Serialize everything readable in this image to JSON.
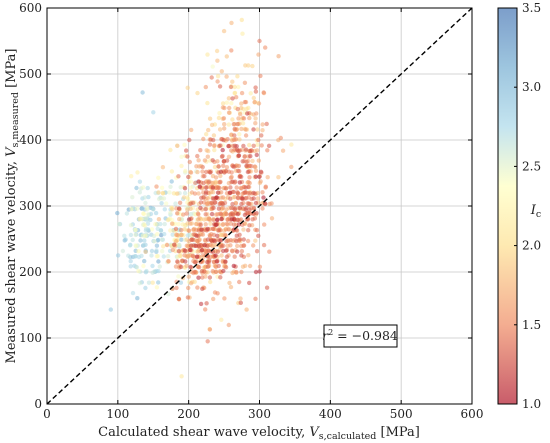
{
  "chart_data": {
    "type": "scatter",
    "xlabel_main": "Calculated shear wave velocity, ",
    "xlabel_var": "V",
    "xlabel_sub": "s,calculated",
    "xlabel_unit": " [MPa]",
    "ylabel_main": "Measured shear wave velocity, ",
    "ylabel_var": "V",
    "ylabel_sub": "s,measured",
    "ylabel_unit": " [MPa]",
    "xlim": [
      0,
      600
    ],
    "ylim": [
      0,
      600
    ],
    "xticks": [
      0,
      100,
      200,
      300,
      400,
      500,
      600
    ],
    "yticks": [
      0,
      100,
      200,
      300,
      400,
      500,
      600
    ],
    "xtick_labels": [
      "0",
      "100",
      "200",
      "300",
      "400",
      "500",
      "600"
    ],
    "ytick_labels": [
      "0",
      "100",
      "200",
      "300",
      "400",
      "500",
      "600"
    ],
    "grid": true,
    "reference_line": "1:1 dashed",
    "annotation": {
      "text_r": "r",
      "text_sup": "2",
      "text_value": " = −0.984",
      "x": 430,
      "y": 105
    },
    "colorbar": {
      "label_var": "I",
      "label_sub": "c",
      "min": 1.0,
      "max": 3.5,
      "ticks": [
        1.0,
        1.5,
        2.0,
        2.5,
        3.0,
        3.5
      ],
      "tick_labels": [
        "1.0",
        "1.5",
        "2.0",
        "2.5",
        "3.0",
        "3.5"
      ],
      "colormap": "RdYlBu"
    },
    "clusters": [
      {
        "cx": 140,
        "cy": 260,
        "sx": 18,
        "sy": 40,
        "n": 170,
        "ic": 2.75,
        "ic_sd": 0.25
      },
      {
        "cx": 185,
        "cy": 270,
        "sx": 18,
        "sy": 45,
        "n": 170,
        "ic": 2.3,
        "ic_sd": 0.3
      },
      {
        "cx": 230,
        "cy": 275,
        "sx": 20,
        "sy": 55,
        "n": 320,
        "ic": 1.6,
        "ic_sd": 0.25
      },
      {
        "cx": 270,
        "cy": 320,
        "sx": 22,
        "sy": 65,
        "n": 380,
        "ic": 1.45,
        "ic_sd": 0.2
      },
      {
        "cx": 265,
        "cy": 430,
        "sx": 25,
        "sy": 55,
        "n": 130,
        "ic": 1.9,
        "ic_sd": 0.25
      },
      {
        "cx": 215,
        "cy": 225,
        "sx": 18,
        "sy": 25,
        "n": 150,
        "ic": 1.5,
        "ic_sd": 0.2
      }
    ],
    "outliers": [
      {
        "x": 90,
        "y": 143,
        "ic": 2.9
      },
      {
        "x": 135,
        "y": 472,
        "ic": 3.0
      },
      {
        "x": 150,
        "y": 442,
        "ic": 2.8
      },
      {
        "x": 190,
        "y": 42,
        "ic": 2.1
      },
      {
        "x": 250,
        "y": 565,
        "ic": 1.8
      },
      {
        "x": 275,
        "y": 582,
        "ic": 2.0
      },
      {
        "x": 300,
        "y": 550,
        "ic": 1.4
      },
      {
        "x": 308,
        "y": 540,
        "ic": 1.5
      },
      {
        "x": 230,
        "y": 113,
        "ic": 1.5
      },
      {
        "x": 270,
        "y": 153,
        "ic": 1.9
      },
      {
        "x": 330,
        "y": 403,
        "ic": 1.5
      },
      {
        "x": 345,
        "y": 393,
        "ic": 2.1
      }
    ]
  }
}
